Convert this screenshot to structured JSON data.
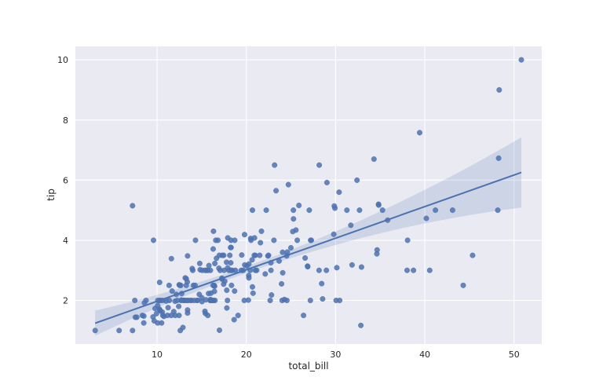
{
  "chart_data": {
    "type": "scatter",
    "title": "",
    "xlabel": "total_bill",
    "ylabel": "tip",
    "xlim": [
      0.85,
      53.1
    ],
    "ylim": [
      0.55,
      10.45
    ],
    "xticks": [
      10,
      20,
      30,
      40,
      50
    ],
    "yticks": [
      2,
      4,
      6,
      8,
      10
    ],
    "grid": true,
    "colors": {
      "points": "#4c72b0",
      "line": "#4c72b0",
      "band": "#4c72b0",
      "background": "#eaeaf2",
      "grid": "#ffffff"
    },
    "points": [
      [
        16.99,
        1.01
      ],
      [
        10.34,
        1.66
      ],
      [
        21.01,
        3.5
      ],
      [
        23.68,
        3.31
      ],
      [
        24.59,
        3.61
      ],
      [
        25.29,
        4.71
      ],
      [
        8.77,
        2.0
      ],
      [
        26.88,
        3.12
      ],
      [
        15.04,
        1.96
      ],
      [
        14.78,
        3.23
      ],
      [
        10.27,
        1.71
      ],
      [
        35.26,
        5.0
      ],
      [
        15.42,
        1.57
      ],
      [
        18.43,
        3.0
      ],
      [
        14.83,
        3.02
      ],
      [
        21.58,
        3.92
      ],
      [
        10.33,
        1.67
      ],
      [
        16.29,
        3.71
      ],
      [
        16.97,
        3.5
      ],
      [
        20.65,
        3.35
      ],
      [
        17.92,
        4.08
      ],
      [
        20.29,
        2.75
      ],
      [
        15.77,
        2.23
      ],
      [
        39.42,
        7.58
      ],
      [
        19.82,
        3.18
      ],
      [
        17.81,
        2.34
      ],
      [
        13.37,
        2.0
      ],
      [
        12.69,
        2.0
      ],
      [
        21.7,
        4.3
      ],
      [
        19.65,
        3.0
      ],
      [
        9.55,
        1.45
      ],
      [
        18.35,
        2.5
      ],
      [
        15.06,
        3.0
      ],
      [
        20.69,
        2.45
      ],
      [
        17.78,
        3.27
      ],
      [
        24.06,
        3.6
      ],
      [
        16.31,
        2.0
      ],
      [
        16.93,
        3.07
      ],
      [
        18.69,
        2.31
      ],
      [
        31.27,
        5.0
      ],
      [
        16.04,
        2.24
      ],
      [
        17.46,
        2.54
      ],
      [
        13.94,
        3.06
      ],
      [
        9.68,
        1.32
      ],
      [
        30.4,
        5.6
      ],
      [
        18.29,
        3.0
      ],
      [
        22.23,
        5.0
      ],
      [
        32.4,
        6.0
      ],
      [
        28.55,
        2.05
      ],
      [
        18.04,
        3.0
      ],
      [
        12.54,
        2.5
      ],
      [
        10.29,
        2.6
      ],
      [
        34.81,
        5.2
      ],
      [
        9.94,
        1.56
      ],
      [
        25.56,
        4.34
      ],
      [
        19.49,
        3.51
      ],
      [
        38.01,
        3.0
      ],
      [
        26.41,
        1.5
      ],
      [
        11.24,
        1.76
      ],
      [
        48.27,
        6.73
      ],
      [
        20.29,
        3.21
      ],
      [
        13.81,
        2.0
      ],
      [
        11.02,
        1.98
      ],
      [
        18.29,
        3.76
      ],
      [
        17.59,
        2.64
      ],
      [
        20.08,
        3.15
      ],
      [
        16.45,
        2.47
      ],
      [
        3.07,
        1.0
      ],
      [
        20.23,
        2.01
      ],
      [
        15.01,
        2.09
      ],
      [
        12.02,
        1.97
      ],
      [
        17.07,
        3.0
      ],
      [
        26.86,
        3.14
      ],
      [
        25.28,
        5.0
      ],
      [
        14.73,
        2.2
      ],
      [
        10.51,
        1.25
      ],
      [
        17.92,
        3.08
      ],
      [
        27.2,
        4.0
      ],
      [
        22.76,
        3.0
      ],
      [
        17.29,
        2.71
      ],
      [
        19.44,
        3.0
      ],
      [
        16.66,
        3.4
      ],
      [
        10.07,
        1.83
      ],
      [
        32.68,
        5.0
      ],
      [
        15.98,
        2.03
      ],
      [
        34.83,
        5.17
      ],
      [
        13.03,
        2.0
      ],
      [
        18.28,
        4.0
      ],
      [
        24.71,
        5.85
      ],
      [
        21.16,
        3.0
      ],
      [
        28.97,
        3.0
      ],
      [
        22.49,
        3.5
      ],
      [
        5.75,
        1.0
      ],
      [
        16.32,
        4.3
      ],
      [
        22.75,
        3.25
      ],
      [
        40.17,
        4.73
      ],
      [
        27.28,
        4.0
      ],
      [
        12.03,
        1.5
      ],
      [
        21.01,
        3.0
      ],
      [
        12.46,
        1.5
      ],
      [
        11.35,
        2.5
      ],
      [
        15.38,
        3.0
      ],
      [
        44.3,
        2.5
      ],
      [
        22.42,
        3.48
      ],
      [
        20.92,
        4.08
      ],
      [
        15.36,
        1.64
      ],
      [
        20.49,
        4.06
      ],
      [
        25.21,
        4.29
      ],
      [
        18.24,
        3.76
      ],
      [
        14.31,
        4.0
      ],
      [
        14.0,
        3.0
      ],
      [
        7.25,
        1.0
      ],
      [
        38.07,
        4.0
      ],
      [
        23.95,
        2.55
      ],
      [
        25.71,
        4.0
      ],
      [
        17.31,
        3.5
      ],
      [
        29.93,
        5.07
      ],
      [
        10.65,
        1.5
      ],
      [
        12.43,
        1.8
      ],
      [
        24.08,
        2.92
      ],
      [
        11.69,
        2.31
      ],
      [
        13.42,
        1.68
      ],
      [
        14.26,
        2.5
      ],
      [
        15.95,
        2.0
      ],
      [
        12.48,
        2.52
      ],
      [
        29.8,
        4.2
      ],
      [
        8.52,
        1.48
      ],
      [
        14.52,
        2.0
      ],
      [
        11.38,
        2.0
      ],
      [
        22.82,
        2.18
      ],
      [
        19.08,
        1.5
      ],
      [
        20.27,
        2.83
      ],
      [
        11.17,
        1.5
      ],
      [
        12.26,
        2.0
      ],
      [
        18.26,
        3.25
      ],
      [
        8.51,
        1.25
      ],
      [
        10.33,
        2.0
      ],
      [
        14.15,
        2.0
      ],
      [
        16.0,
        2.0
      ],
      [
        13.16,
        2.75
      ],
      [
        17.47,
        3.5
      ],
      [
        34.3,
        6.7
      ],
      [
        41.19,
        5.0
      ],
      [
        27.05,
        5.0
      ],
      [
        16.43,
        2.3
      ],
      [
        8.35,
        1.5
      ],
      [
        18.64,
        1.36
      ],
      [
        11.87,
        1.63
      ],
      [
        9.78,
        1.73
      ],
      [
        7.51,
        2.0
      ],
      [
        14.07,
        2.5
      ],
      [
        13.13,
        2.0
      ],
      [
        17.26,
        2.74
      ],
      [
        24.55,
        2.0
      ],
      [
        19.77,
        2.0
      ],
      [
        29.85,
        5.14
      ],
      [
        48.17,
        5.0
      ],
      [
        25.0,
        3.75
      ],
      [
        13.39,
        2.61
      ],
      [
        16.49,
        2.0
      ],
      [
        21.5,
        3.5
      ],
      [
        12.66,
        2.5
      ],
      [
        16.21,
        2.0
      ],
      [
        13.81,
        2.0
      ],
      [
        17.51,
        3.0
      ],
      [
        24.52,
        3.48
      ],
      [
        20.76,
        2.24
      ],
      [
        31.71,
        4.5
      ],
      [
        10.59,
        1.61
      ],
      [
        10.63,
        2.0
      ],
      [
        50.81,
        10.0
      ],
      [
        15.81,
        3.16
      ],
      [
        7.25,
        5.15
      ],
      [
        31.85,
        3.18
      ],
      [
        16.82,
        4.0
      ],
      [
        32.9,
        3.11
      ],
      [
        17.89,
        2.0
      ],
      [
        14.48,
        2.0
      ],
      [
        9.6,
        4.0
      ],
      [
        34.63,
        3.55
      ],
      [
        34.65,
        3.68
      ],
      [
        23.33,
        5.65
      ],
      [
        45.35,
        3.5
      ],
      [
        23.17,
        6.5
      ],
      [
        40.55,
        3.0
      ],
      [
        20.69,
        5.0
      ],
      [
        20.9,
        3.5
      ],
      [
        30.46,
        2.0
      ],
      [
        18.15,
        3.5
      ],
      [
        23.1,
        4.0
      ],
      [
        15.69,
        1.5
      ],
      [
        19.81,
        4.19
      ],
      [
        28.44,
        2.56
      ],
      [
        15.48,
        2.02
      ],
      [
        16.58,
        4.0
      ],
      [
        7.56,
        1.44
      ],
      [
        10.34,
        2.0
      ],
      [
        43.11,
        5.0
      ],
      [
        13.0,
        2.0
      ],
      [
        13.51,
        2.0
      ],
      [
        18.71,
        4.0
      ],
      [
        12.74,
        2.01
      ],
      [
        13.0,
        2.0
      ],
      [
        16.4,
        2.5
      ],
      [
        20.53,
        4.0
      ],
      [
        16.47,
        3.23
      ],
      [
        26.59,
        3.41
      ],
      [
        38.73,
        3.0
      ],
      [
        24.27,
        2.03
      ],
      [
        12.76,
        2.23
      ],
      [
        30.06,
        2.0
      ],
      [
        25.89,
        5.16
      ],
      [
        48.33,
        9.0
      ],
      [
        13.27,
        2.5
      ],
      [
        28.17,
        6.5
      ],
      [
        12.9,
        1.1
      ],
      [
        28.15,
        3.0
      ],
      [
        11.59,
        1.5
      ],
      [
        7.74,
        1.44
      ],
      [
        30.14,
        3.09
      ],
      [
        12.16,
        2.2
      ],
      [
        13.42,
        3.48
      ],
      [
        8.58,
        1.92
      ],
      [
        15.98,
        3.0
      ],
      [
        13.42,
        1.58
      ],
      [
        16.27,
        2.5
      ],
      [
        10.09,
        2.0
      ],
      [
        20.45,
        3.0
      ],
      [
        13.28,
        2.72
      ],
      [
        22.12,
        2.88
      ],
      [
        24.01,
        2.0
      ],
      [
        15.69,
        3.0
      ],
      [
        11.61,
        3.39
      ],
      [
        10.77,
        1.47
      ],
      [
        15.53,
        3.0
      ],
      [
        10.07,
        1.25
      ],
      [
        12.6,
        1.0
      ],
      [
        32.83,
        1.17
      ],
      [
        35.83,
        4.67
      ],
      [
        29.03,
        5.92
      ],
      [
        27.18,
        2.0
      ],
      [
        22.67,
        2.0
      ],
      [
        17.82,
        1.75
      ],
      [
        18.78,
        3.0
      ]
    ],
    "regression": {
      "slope": 0.105,
      "intercept": 0.92,
      "x_range": [
        3.07,
        50.81
      ]
    }
  }
}
